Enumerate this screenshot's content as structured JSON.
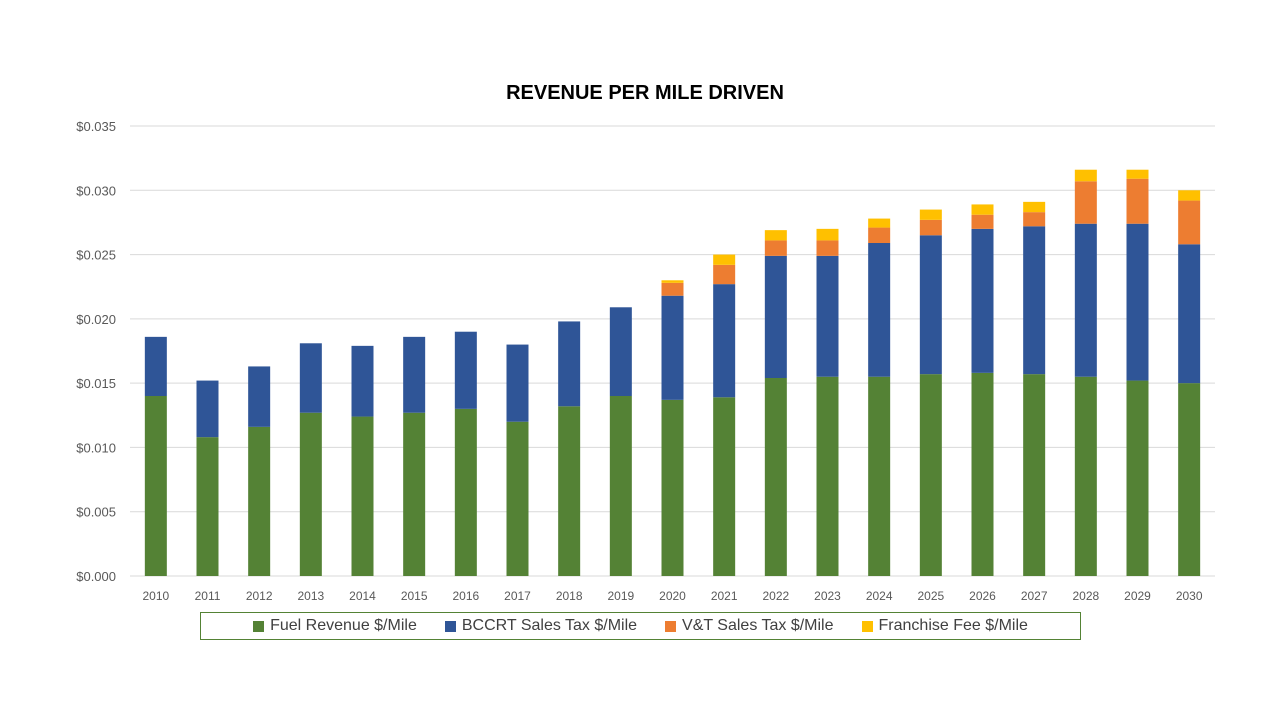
{
  "chart_data": {
    "type": "stacked-bar",
    "title": "REVENUE PER MILE DRIVEN",
    "xlabel": "",
    "ylabel": "",
    "ylim": [
      0,
      0.035
    ],
    "yticks": [
      0.0,
      0.005,
      0.01,
      0.015,
      0.02,
      0.025,
      0.03,
      0.035
    ],
    "ytick_labels": [
      "$0.000",
      "$0.005",
      "$0.010",
      "$0.015",
      "$0.020",
      "$0.025",
      "$0.030",
      "$0.035"
    ],
    "grid": true,
    "legend_position": "bottom",
    "categories": [
      "2010",
      "2011",
      "2012",
      "2013",
      "2014",
      "2015",
      "2016",
      "2017",
      "2018",
      "2019",
      "2020",
      "2021",
      "2022",
      "2023",
      "2024",
      "2025",
      "2026",
      "2027",
      "2028",
      "2029",
      "2030"
    ],
    "series": [
      {
        "name": "Fuel Revenue $/Mile",
        "color": "#548235",
        "values": [
          0.014,
          0.0108,
          0.0116,
          0.0127,
          0.0124,
          0.0127,
          0.013,
          0.012,
          0.0132,
          0.014,
          0.0137,
          0.0139,
          0.0154,
          0.0155,
          0.0155,
          0.0157,
          0.0158,
          0.0157,
          0.0155,
          0.0152,
          0.015
        ]
      },
      {
        "name": "BCCRT Sales Tax $/Mile",
        "color": "#2F5597",
        "values": [
          0.0046,
          0.0044,
          0.0047,
          0.0054,
          0.0055,
          0.0059,
          0.006,
          0.006,
          0.0066,
          0.0069,
          0.0081,
          0.0088,
          0.0095,
          0.0094,
          0.0104,
          0.0108,
          0.0112,
          0.0115,
          0.0119,
          0.0122,
          0.0108
        ]
      },
      {
        "name": "V&T Sales Tax $/Mile",
        "color": "#ED7D31",
        "values": [
          0,
          0,
          0,
          0,
          0,
          0,
          0,
          0,
          0,
          0,
          0.001,
          0.0015,
          0.0012,
          0.0012,
          0.0012,
          0.0012,
          0.0011,
          0.0011,
          0.0033,
          0.0035,
          0.0034
        ]
      },
      {
        "name": "Franchise Fee $/Mile",
        "color": "#FFC000",
        "values": [
          0,
          0,
          0,
          0,
          0,
          0,
          0,
          0,
          0,
          0,
          0.0002,
          0.0008,
          0.0008,
          0.0009,
          0.0007,
          0.0008,
          0.0008,
          0.0008,
          0.0009,
          0.0007,
          0.0008
        ]
      }
    ],
    "axis_color": "#d9d9d9",
    "tick_label_color": "#595959",
    "legend_border_color": "#548235"
  }
}
